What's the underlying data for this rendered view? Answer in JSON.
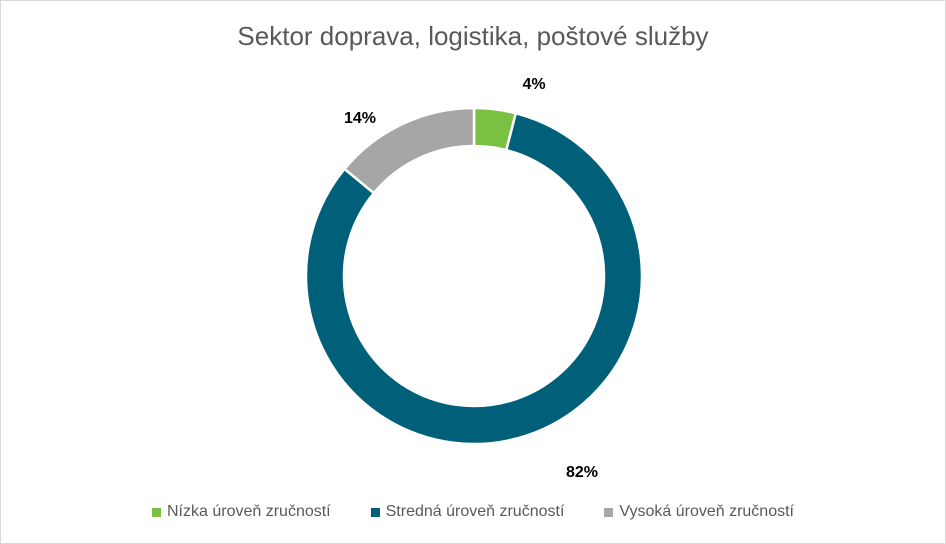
{
  "chart_data": {
    "type": "pie",
    "title": "Sektor doprava, logistika, poštové služby",
    "categories": [
      "Nízka úroveň zručností",
      "Stredná úroveň zručností",
      "Vysoká úroveň zručností"
    ],
    "values": [
      4,
      82,
      14
    ],
    "labels": [
      "4%",
      "82%",
      "14%"
    ],
    "colors": [
      "#7ac143",
      "#00607a",
      "#a6a6a6"
    ],
    "legend_position": "bottom"
  }
}
